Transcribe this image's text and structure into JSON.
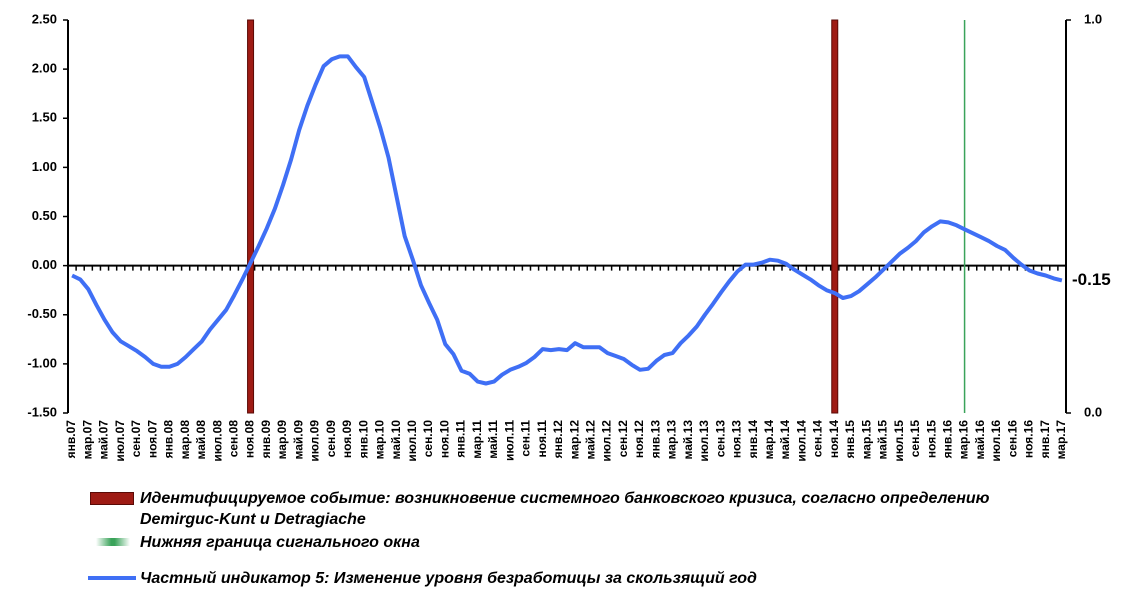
{
  "chart_data": {
    "type": "line",
    "categories": [
      "янв.07",
      null,
      "мар.07",
      null,
      "май.07",
      null,
      "июл.07",
      null,
      "сен.07",
      null,
      "ноя.07",
      null,
      "янв.08",
      null,
      "мар.08",
      null,
      "май.08",
      null,
      "июл.08",
      null,
      "сен.08",
      null,
      "ноя.08",
      null,
      "янв.09",
      null,
      "мар.09",
      null,
      "май.09",
      null,
      "июл.09",
      null,
      "сен.09",
      null,
      "ноя.09",
      null,
      "янв.10",
      null,
      "мар.10",
      null,
      "май.10",
      null,
      "июл.10",
      null,
      "сен.10",
      null,
      "ноя.10",
      null,
      "янв.11",
      null,
      "мар.11",
      null,
      "май.11",
      null,
      "июл.11",
      null,
      "сен.11",
      null,
      "ноя.11",
      null,
      "янв.12",
      null,
      "мар.12",
      null,
      "май.12",
      null,
      "июл.12",
      null,
      "сен.12",
      null,
      "ноя.12",
      null,
      "янв.13",
      null,
      "мар.13",
      null,
      "май.13",
      null,
      "июл.13",
      null,
      "сен.13",
      null,
      "ноя.13",
      null,
      "янв.14",
      null,
      "мар.14",
      null,
      "май.14",
      null,
      "июл.14",
      null,
      "сен.14",
      null,
      "ноя.14",
      null,
      "янв.15",
      null,
      "мар.15",
      null,
      "май.15",
      null,
      "июл.15",
      null,
      "сен.15",
      null,
      "ноя.15",
      null,
      "янв.16",
      null,
      "мар.16",
      null,
      "май.16",
      null,
      "июл.16",
      null,
      "сен.16",
      null,
      "ноя.16",
      null,
      "янв.17",
      null,
      "мар.17"
    ],
    "series": [
      {
        "name": "Идентифицируемое событие: возникновение системного банковского кризиса, согласно определению Demirguc-Kunt и Detragiache",
        "color": "#9e1b14",
        "type": "bar",
        "axis": "y2",
        "x": [
          "ноя.08",
          "ноя.14"
        ],
        "values": [
          1,
          1
        ]
      },
      {
        "name": "Нижняя граница сигнального окна",
        "color": "#3aa35a",
        "type": "vline",
        "axis": "y2",
        "x": [
          "мар.16"
        ],
        "values": [
          1
        ]
      },
      {
        "name": "Частный индикатор 5: Изменение уровня безработицы за скользящий год",
        "color": "#3f6ff5",
        "type": "line",
        "values": [
          -0.1,
          -0.14,
          -0.24,
          -0.4,
          -0.55,
          -0.68,
          -0.77,
          -0.82,
          -0.87,
          -0.93,
          -1.0,
          -1.03,
          -1.03,
          -1.0,
          -0.93,
          -0.85,
          -0.77,
          -0.65,
          -0.55,
          -0.45,
          -0.3,
          -0.14,
          0.03,
          0.2,
          0.38,
          0.58,
          0.82,
          1.08,
          1.38,
          1.63,
          1.84,
          2.03,
          2.1,
          2.13,
          2.13,
          2.02,
          1.92,
          1.66,
          1.4,
          1.1,
          0.7,
          0.3,
          0.06,
          -0.2,
          -0.38,
          -0.55,
          -0.8,
          -0.9,
          -1.07,
          -1.1,
          -1.18,
          -1.2,
          -1.18,
          -1.11,
          -1.06,
          -1.03,
          -0.99,
          -0.93,
          -0.85,
          -0.86,
          -0.85,
          -0.86,
          -0.79,
          -0.83,
          -0.83,
          -0.83,
          -0.89,
          -0.92,
          -0.95,
          -1.01,
          -1.06,
          -1.05,
          -0.97,
          -0.91,
          -0.89,
          -0.79,
          -0.71,
          -0.62,
          -0.5,
          -0.39,
          -0.27,
          -0.16,
          -0.06,
          0.01,
          0.01,
          0.03,
          0.06,
          0.05,
          0.02,
          -0.04,
          -0.09,
          -0.14,
          -0.2,
          -0.25,
          -0.28,
          -0.33,
          -0.31,
          -0.26,
          -0.19,
          -0.12,
          -0.04,
          0.04,
          0.12,
          0.18,
          0.25,
          0.34,
          0.4,
          0.45,
          0.44,
          0.41,
          0.37,
          0.33,
          0.29,
          0.25,
          0.2,
          0.16,
          0.08,
          0.01,
          -0.05,
          -0.08,
          -0.1,
          -0.13,
          -0.15
        ]
      }
    ],
    "ylim": [
      -1.5,
      2.5
    ],
    "yticks": [
      {
        "value": -1.5,
        "label": "-1.50"
      },
      {
        "value": -1,
        "label": "-1.00"
      },
      {
        "value": -0.5,
        "label": "-0.50"
      },
      {
        "value": 0,
        "label": "0.00"
      },
      {
        "value": 0.5,
        "label": "0.50"
      },
      {
        "value": 1,
        "label": "1.00"
      },
      {
        "value": 1.5,
        "label": "1.50"
      },
      {
        "value": 2,
        "label": "2.00"
      },
      {
        "value": 2.5,
        "label": "2.50"
      }
    ],
    "y2lim": [
      0,
      1
    ],
    "y2ticks": [
      {
        "value": 0,
        "label": "0.0"
      },
      {
        "value": 1,
        "label": "1.0"
      }
    ],
    "annotations": [
      {
        "text": "-0.15",
        "value": -0.15,
        "color": "#3f6ff5"
      }
    ],
    "grid": false
  }
}
